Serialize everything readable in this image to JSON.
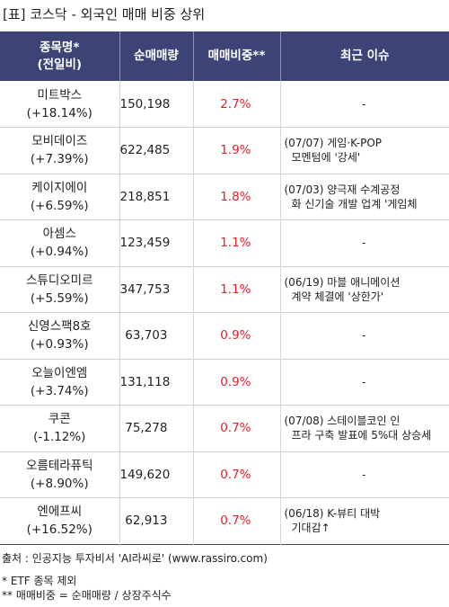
{
  "title": "[표] 코스닥 - 외국인 매매 비중 상위",
  "header": {
    "name_line1": "종목명*",
    "name_line2": "(전일비)",
    "volume": "순매매량",
    "ratio": "매매비중**",
    "news": "최근 이슈"
  },
  "rows": [
    {
      "name": "미트박스",
      "change": "(+18.14%)",
      "volume": "150,198",
      "ratio": "2.7%",
      "news1": "-",
      "news2": ""
    },
    {
      "name": "모비데이즈",
      "change": "(+7.39%)",
      "volume": "622,485",
      "ratio": "1.9%",
      "news1": "(07/07) 게임·K-POP",
      "news2": "모멘텀에 '강세'"
    },
    {
      "name": "케이지에이",
      "change": "(+6.59%)",
      "volume": "218,851",
      "ratio": "1.8%",
      "news1": "(07/03) 양극재 수계공정",
      "news2": "화 신기술 개발 업계 '게임체"
    },
    {
      "name": "아셈스",
      "change": "(+0.94%)",
      "volume": "123,459",
      "ratio": "1.1%",
      "news1": "-",
      "news2": ""
    },
    {
      "name": "스튜디오미르",
      "change": "(+5.59%)",
      "volume": "347,753",
      "ratio": "1.1%",
      "news1": "(06/19) 마블 애니메이션",
      "news2": "계약 체결에 '상한가'"
    },
    {
      "name": "신영스팩8호",
      "change": "(+0.93%)",
      "volume": "63,703",
      "ratio": "0.9%",
      "news1": "-",
      "news2": ""
    },
    {
      "name": "오늘이엔엠",
      "change": "(+3.74%)",
      "volume": "131,118",
      "ratio": "0.9%",
      "news1": "-",
      "news2": ""
    },
    {
      "name": "쿠콘",
      "change": "(-1.12%)",
      "volume": "75,278",
      "ratio": "0.7%",
      "news1": "(07/08) 스테이블코인 인",
      "news2": "프라 구축 발표에 5%대 상승세"
    },
    {
      "name": "오름테라퓨틱",
      "change": "(+8.90%)",
      "volume": "149,620",
      "ratio": "0.7%",
      "news1": "-",
      "news2": ""
    },
    {
      "name": "엔에프씨",
      "change": "(+16.52%)",
      "volume": "62,913",
      "ratio": "0.7%",
      "news1": "(06/18) K-뷰티 대박",
      "news2": "기대감↑"
    }
  ],
  "footer": {
    "source": "출처 : 인공지능 투자비서 'AI라씨로' (www.rassiro.com)",
    "note1": "* ETF 종목 제외",
    "note2": "** 매매비중 = 순매매량 / 상장주식수"
  },
  "colors": {
    "header_bg": "#3c4477",
    "ratio_text": "#e0202a"
  }
}
